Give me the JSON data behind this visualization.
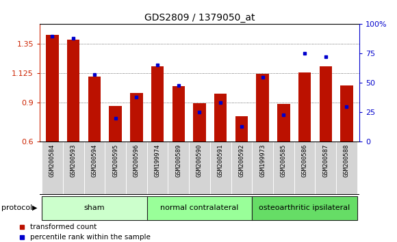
{
  "title": "GDS2809 / 1379050_at",
  "samples": [
    "GSM200584",
    "GSM200593",
    "GSM200594",
    "GSM200595",
    "GSM200596",
    "GSM199974",
    "GSM200589",
    "GSM200590",
    "GSM200591",
    "GSM200592",
    "GSM199973",
    "GSM200585",
    "GSM200586",
    "GSM200587",
    "GSM200588"
  ],
  "transformed_count": [
    1.42,
    1.38,
    1.1,
    0.875,
    0.975,
    1.175,
    1.025,
    0.895,
    0.965,
    0.795,
    1.12,
    0.89,
    1.13,
    1.175,
    1.03
  ],
  "percentile_rank": [
    90,
    88,
    57,
    20,
    38,
    65,
    48,
    25,
    33,
    13,
    55,
    23,
    75,
    72,
    30
  ],
  "groups": [
    {
      "label": "sham",
      "start": 0,
      "end": 5
    },
    {
      "label": "normal contralateral",
      "start": 5,
      "end": 10
    },
    {
      "label": "osteoarthritic ipsilateral",
      "start": 10,
      "end": 15
    }
  ],
  "group_colors": [
    "#ccffcc",
    "#99ff99",
    "#66dd66"
  ],
  "bar_color": "#bb1100",
  "dot_color": "#0000cc",
  "ylim_left": [
    0.6,
    1.5
  ],
  "ylim_right": [
    0,
    100
  ],
  "yticks_left": [
    0.6,
    0.9,
    1.125,
    1.35
  ],
  "ytick_labels_left": [
    "0.6",
    "0.9",
    "1.125",
    "1.35"
  ],
  "yticks_right": [
    0,
    25,
    50,
    75,
    100
  ],
  "ytick_labels_right": [
    "0",
    "25",
    "50",
    "75",
    "100%"
  ],
  "tick_label_color_left": "#cc2200",
  "tick_label_color_right": "#0000cc",
  "protocol_label": "protocol",
  "legend_bar_label": "transformed count",
  "legend_dot_label": "percentile rank within the sample"
}
